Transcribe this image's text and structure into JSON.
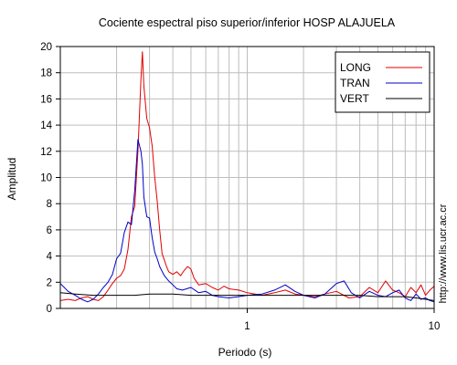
{
  "chart_data": {
    "type": "line",
    "title": "Cociente espectral piso superior/inferior  HOSP ALAJUELA",
    "xlabel": "Periodo (s)",
    "ylabel": "Amplitud",
    "side_note": "http://www.lis.ucr.ac.cr",
    "x_scale": "log",
    "xlim": [
      0.1,
      10
    ],
    "ylim": [
      0,
      20
    ],
    "x_ticks": [
      1,
      10
    ],
    "x_tick_labels": [
      "1",
      "10"
    ],
    "y_ticks": [
      0,
      2,
      4,
      6,
      8,
      10,
      12,
      14,
      16,
      18,
      20
    ],
    "y_tick_labels": [
      "0",
      "2",
      "4",
      "6",
      "8",
      "10",
      "12",
      "14",
      "16",
      "18",
      "20"
    ],
    "grid": true,
    "legend_position": "top-right",
    "series": [
      {
        "name": "LONG",
        "color": "#e00000",
        "x": [
          0.1,
          0.11,
          0.12,
          0.13,
          0.14,
          0.15,
          0.16,
          0.17,
          0.18,
          0.19,
          0.2,
          0.21,
          0.22,
          0.23,
          0.24,
          0.25,
          0.26,
          0.27,
          0.275,
          0.28,
          0.29,
          0.3,
          0.31,
          0.32,
          0.33,
          0.34,
          0.35,
          0.36,
          0.37,
          0.38,
          0.4,
          0.42,
          0.44,
          0.46,
          0.48,
          0.5,
          0.52,
          0.55,
          0.6,
          0.65,
          0.7,
          0.75,
          0.8,
          0.9,
          1.0,
          1.2,
          1.4,
          1.6,
          1.8,
          2.0,
          2.3,
          2.6,
          3.0,
          3.5,
          4.0,
          4.5,
          5.0,
          5.5,
          6.0,
          6.5,
          7.0,
          7.5,
          8.0,
          8.5,
          9.0,
          9.5,
          10
        ],
        "y": [
          0.6,
          0.7,
          0.6,
          0.8,
          0.9,
          0.7,
          0.6,
          0.9,
          1.4,
          1.9,
          2.3,
          2.5,
          3.0,
          4.5,
          7.0,
          7.8,
          12.0,
          17.5,
          19.6,
          17.0,
          14.5,
          13.8,
          12.4,
          10.0,
          8.2,
          6.0,
          4.2,
          3.7,
          3.2,
          2.8,
          2.6,
          2.8,
          2.5,
          2.9,
          3.2,
          3.0,
          2.3,
          1.8,
          1.9,
          1.6,
          1.4,
          1.7,
          1.5,
          1.4,
          1.2,
          1.0,
          1.2,
          1.4,
          1.1,
          1.0,
          0.9,
          1.1,
          1.3,
          0.8,
          0.9,
          1.6,
          1.2,
          2.1,
          1.4,
          1.2,
          0.9,
          1.6,
          1.2,
          1.8,
          1.0,
          1.4,
          1.7
        ]
      },
      {
        "name": "TRAN",
        "color": "#0000cc",
        "x": [
          0.1,
          0.105,
          0.11,
          0.12,
          0.13,
          0.14,
          0.15,
          0.16,
          0.17,
          0.18,
          0.19,
          0.2,
          0.21,
          0.22,
          0.23,
          0.24,
          0.25,
          0.26,
          0.27,
          0.275,
          0.28,
          0.29,
          0.3,
          0.31,
          0.32,
          0.33,
          0.34,
          0.36,
          0.38,
          0.4,
          0.42,
          0.45,
          0.5,
          0.55,
          0.6,
          0.65,
          0.7,
          0.8,
          0.9,
          1.0,
          1.2,
          1.4,
          1.6,
          1.8,
          2.0,
          2.3,
          2.6,
          3.0,
          3.3,
          3.6,
          4.0,
          4.5,
          5.0,
          5.5,
          6.0,
          6.5,
          7.0,
          7.5,
          8.0,
          8.5,
          9.0,
          9.5,
          10
        ],
        "y": [
          1.9,
          1.6,
          1.3,
          1.0,
          0.7,
          0.5,
          0.7,
          1.1,
          1.6,
          2.0,
          2.6,
          3.8,
          4.2,
          5.8,
          6.6,
          6.4,
          9.0,
          12.9,
          12.0,
          11.0,
          8.5,
          7.0,
          6.9,
          5.4,
          4.3,
          3.8,
          3.2,
          2.5,
          2.1,
          1.8,
          1.5,
          1.4,
          1.6,
          1.2,
          1.3,
          1.0,
          0.9,
          0.8,
          0.9,
          1.0,
          1.1,
          1.4,
          1.8,
          1.3,
          1.0,
          0.8,
          1.1,
          1.9,
          2.1,
          1.2,
          0.8,
          1.3,
          1.0,
          0.9,
          1.2,
          1.4,
          0.8,
          0.6,
          1.1,
          0.7,
          0.8,
          0.6,
          0.5
        ]
      },
      {
        "name": "VERT",
        "color": "#000000",
        "x": [
          0.1,
          0.12,
          0.15,
          0.2,
          0.25,
          0.3,
          0.4,
          0.5,
          0.7,
          1.0,
          1.5,
          2.0,
          3.0,
          4.0,
          5.0,
          6.0,
          7.0,
          8.0,
          9.0,
          10
        ],
        "y": [
          1.2,
          1.1,
          1.0,
          1.0,
          1.0,
          1.1,
          1.1,
          1.0,
          1.0,
          1.0,
          1.0,
          1.0,
          1.0,
          1.0,
          0.9,
          0.9,
          0.9,
          0.8,
          0.7,
          0.6
        ]
      }
    ]
  }
}
